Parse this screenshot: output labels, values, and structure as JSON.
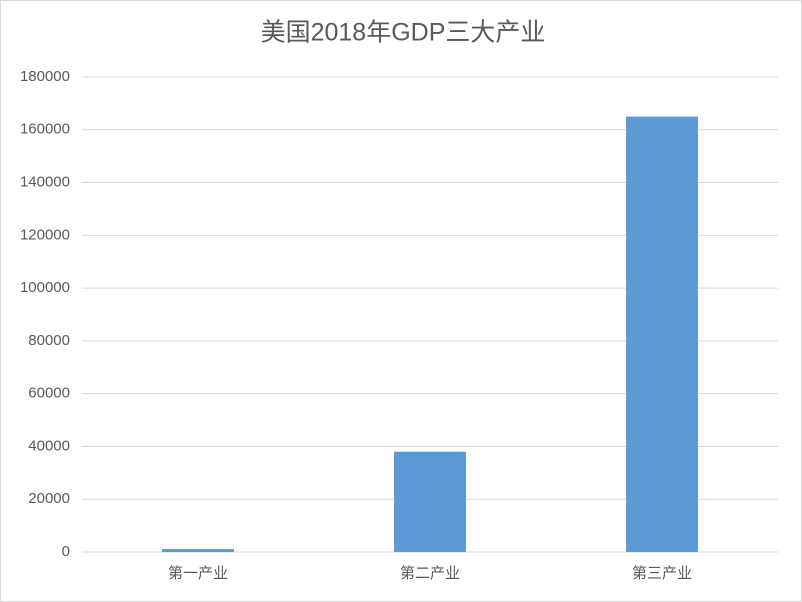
{
  "chart_data": {
    "type": "bar",
    "title": "美国2018年GDP三大产业",
    "categories": [
      "第一产业",
      "第二产业",
      "第三产业"
    ],
    "values": [
      1100,
      38000,
      165000
    ],
    "color": "#5b9bd5",
    "ylim": [
      0,
      180000
    ],
    "yticks": [
      0,
      20000,
      40000,
      60000,
      80000,
      100000,
      120000,
      140000,
      160000,
      180000
    ],
    "grid": true
  }
}
